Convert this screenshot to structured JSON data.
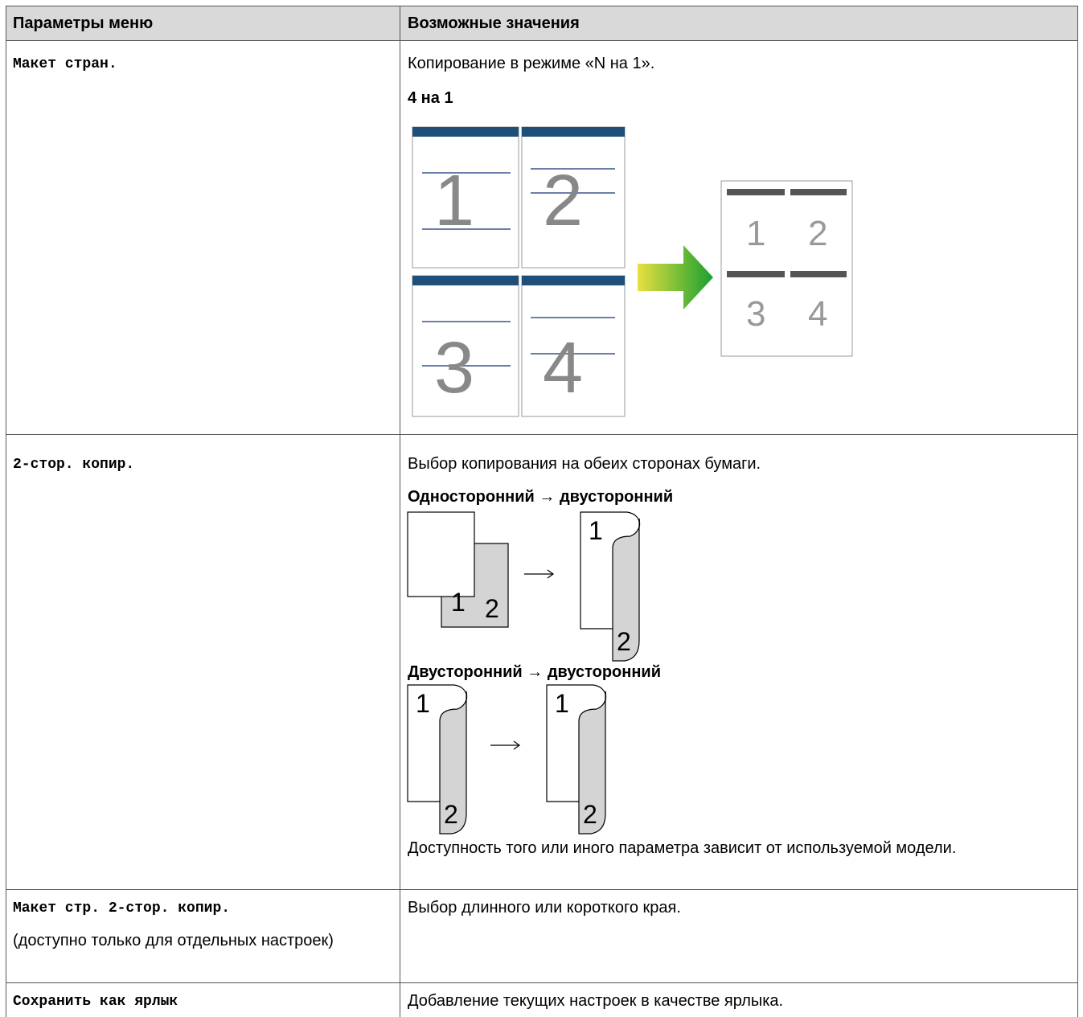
{
  "table": {
    "header": [
      "Параметры меню",
      "Возможные значения"
    ],
    "rows": [
      {
        "option": "Макет стран.",
        "description": "Копирование в режиме «N на 1».",
        "label": "4 на 1"
      },
      {
        "option": "2-стор. копир.",
        "description": "Выбор копирования на обеих сторонах бумаги.",
        "label_1": "Односторонний → двусторонний",
        "label_2": "Двусторонний → двусторонний",
        "note": "Доступность того или иного параметра зависит от используемой модели."
      },
      {
        "option": "Макет стр. 2-стор. копир.",
        "option_note": "(доступно только для отдельных настроек)",
        "description": "Выбор длинного или короткого края."
      },
      {
        "option": "Сохранить как ярлык",
        "description": "Добавление текущих настроек в качестве ярлыка."
      }
    ]
  },
  "layout_digits": [
    "1",
    "2",
    "3",
    "4"
  ],
  "duplex_digits": [
    "1",
    "2"
  ]
}
